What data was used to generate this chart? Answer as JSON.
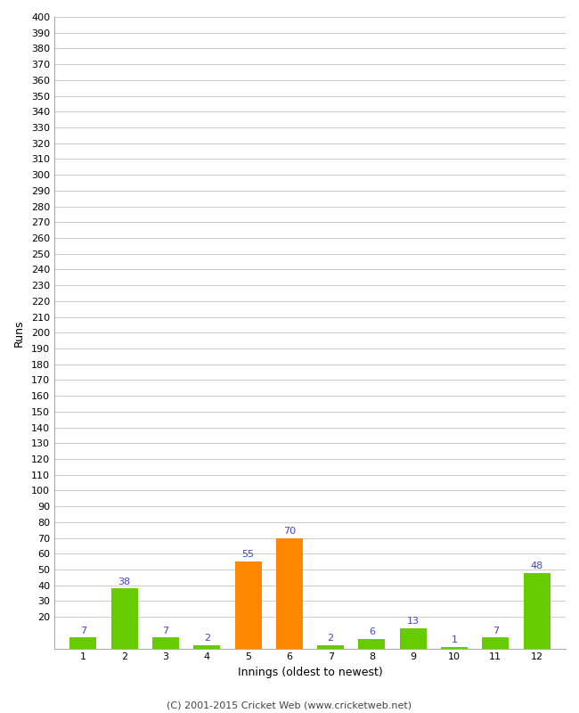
{
  "xlabel": "Innings (oldest to newest)",
  "ylabel": "Runs",
  "categories": [
    1,
    2,
    3,
    4,
    5,
    6,
    7,
    8,
    9,
    10,
    11,
    12
  ],
  "values": [
    7,
    38,
    7,
    2,
    55,
    70,
    2,
    6,
    13,
    1,
    7,
    48
  ],
  "bar_colors": [
    "#66cc00",
    "#66cc00",
    "#66cc00",
    "#66cc00",
    "#ff8800",
    "#ff8800",
    "#66cc00",
    "#66cc00",
    "#66cc00",
    "#66cc00",
    "#66cc00",
    "#66cc00"
  ],
  "ylim": [
    0,
    400
  ],
  "yticks": [
    20,
    30,
    40,
    50,
    60,
    70,
    80,
    90,
    100,
    110,
    120,
    130,
    140,
    150,
    160,
    170,
    180,
    190,
    200,
    210,
    220,
    230,
    240,
    250,
    260,
    270,
    280,
    290,
    300,
    310,
    320,
    330,
    340,
    350,
    360,
    370,
    380,
    390,
    400
  ],
  "label_color": "#4444bb",
  "background_color": "#ffffff",
  "grid_color": "#cccccc",
  "footer": "(C) 2001-2015 Cricket Web (www.cricketweb.net)",
  "bar_width": 0.65,
  "fig_width": 6.5,
  "fig_height": 8.0,
  "dpi": 100
}
